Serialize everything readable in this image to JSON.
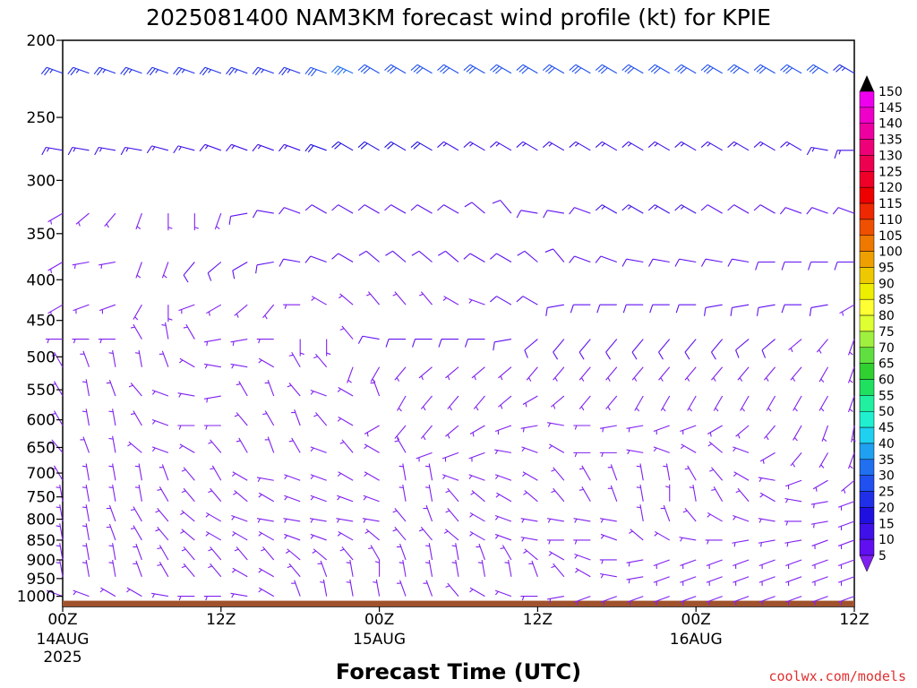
{
  "chart_data": {
    "type": "wind-barb-profile",
    "title": "2025081400 NAM3KM forecast wind profile (kt) for KPIE",
    "xlabel": "Forecast Time (UTC)",
    "ylabel": "",
    "y_ticks": [
      "200",
      "250",
      "300",
      "350",
      "400",
      "450",
      "500",
      "550",
      "600",
      "650",
      "700",
      "750",
      "800",
      "850",
      "900",
      "950",
      "1000"
    ],
    "y_range": [
      200,
      1030
    ],
    "y_scale": "log-pressure",
    "x_range_hours": [
      0,
      60
    ],
    "x_ticks": [
      {
        "hour": 0,
        "label": "00Z",
        "sub1": "14AUG",
        "sub2": "2025"
      },
      {
        "hour": 12,
        "label": "12Z",
        "sub1": "",
        "sub2": ""
      },
      {
        "hour": 24,
        "label": "00Z",
        "sub1": "15AUG",
        "sub2": ""
      },
      {
        "hour": 36,
        "label": "12Z",
        "sub1": "",
        "sub2": ""
      },
      {
        "hour": 48,
        "label": "00Z",
        "sub1": "16AUG",
        "sub2": ""
      },
      {
        "hour": 60,
        "label": "12Z",
        "sub1": "",
        "sub2": ""
      }
    ],
    "ground_color": "#a0522d",
    "colorbar": {
      "labels": [
        "150",
        "145",
        "140",
        "135",
        "130",
        "125",
        "120",
        "115",
        "110",
        "105",
        "100",
        "95",
        "90",
        "85",
        "80",
        "75",
        "70",
        "65",
        "60",
        "55",
        "50",
        "45",
        "40",
        "35",
        "30",
        "25",
        "20",
        "15",
        "10",
        "5"
      ],
      "colors": [
        "#ee00ee",
        "#ee00c8",
        "#ee00a0",
        "#ee0078",
        "#ee0050",
        "#ee0028",
        "#ee0000",
        "#ee2800",
        "#ee5000",
        "#ee7800",
        "#eea000",
        "#eec800",
        "#eeee00",
        "#ffff33",
        "#dfff33",
        "#a0f040",
        "#60e040",
        "#30d030",
        "#20e060",
        "#20f0a0",
        "#20f0d0",
        "#20d0f0",
        "#20a0f0",
        "#2070f0",
        "#2050f0",
        "#2030e8",
        "#2010e0",
        "#4010e8",
        "#6010f0",
        "#8020f0"
      ]
    },
    "barb_rows": [
      {
        "p": 220,
        "dirs": [
          290,
          290,
          290,
          290,
          290,
          290,
          290,
          290,
          290,
          290,
          290,
          295,
          300,
          300,
          300,
          300,
          300,
          300,
          300,
          300,
          300,
          300,
          300,
          300,
          300,
          300,
          300,
          300,
          300,
          300,
          300
        ],
        "speeds": [
          25,
          25,
          25,
          25,
          25,
          25,
          25,
          25,
          25,
          25,
          30,
          35,
          30,
          30,
          30,
          30,
          30,
          30,
          30,
          30,
          30,
          30,
          30,
          30,
          30,
          30,
          30,
          30,
          30,
          30,
          25
        ]
      },
      {
        "p": 275,
        "dirs": [
          280,
          280,
          280,
          280,
          285,
          285,
          290,
          290,
          290,
          290,
          290,
          300,
          300,
          300,
          300,
          300,
          300,
          300,
          300,
          300,
          300,
          300,
          300,
          300,
          300,
          300,
          300,
          300,
          300,
          280,
          270
        ],
        "speeds": [
          15,
          15,
          15,
          15,
          15,
          15,
          15,
          15,
          15,
          15,
          20,
          20,
          20,
          20,
          20,
          15,
          15,
          15,
          15,
          15,
          15,
          15,
          15,
          15,
          15,
          15,
          15,
          15,
          15,
          15,
          15
        ]
      },
      {
        "p": 330,
        "dirs": [
          240,
          230,
          220,
          200,
          180,
          180,
          200,
          260,
          280,
          290,
          300,
          300,
          300,
          300,
          300,
          300,
          310,
          320,
          280,
          280,
          290,
          300,
          300,
          300,
          300,
          300,
          300,
          300,
          290,
          290,
          290
        ],
        "speeds": [
          5,
          5,
          5,
          5,
          5,
          5,
          5,
          10,
          10,
          10,
          10,
          10,
          10,
          10,
          10,
          10,
          10,
          10,
          10,
          10,
          10,
          15,
          15,
          15,
          15,
          10,
          10,
          10,
          10,
          10,
          10
        ]
      },
      {
        "p": 380,
        "dirs": [
          240,
          260,
          260,
          200,
          200,
          220,
          230,
          240,
          260,
          280,
          290,
          300,
          310,
          310,
          310,
          310,
          300,
          300,
          310,
          320,
          290,
          290,
          280,
          280,
          280,
          280,
          280,
          270,
          270,
          270,
          270
        ],
        "speeds": [
          5,
          5,
          5,
          5,
          5,
          10,
          10,
          10,
          10,
          10,
          10,
          10,
          10,
          10,
          10,
          10,
          10,
          10,
          10,
          10,
          10,
          10,
          10,
          10,
          10,
          10,
          10,
          10,
          10,
          10,
          10
        ]
      },
      {
        "p": 430,
        "dirs": [
          240,
          250,
          250,
          210,
          180,
          250,
          240,
          230,
          220,
          270,
          300,
          310,
          320,
          320,
          320,
          300,
          290,
          300,
          300,
          260,
          270,
          270,
          270,
          270,
          270,
          260,
          260,
          260,
          270,
          260,
          240
        ],
        "speeds": [
          5,
          5,
          5,
          5,
          5,
          5,
          5,
          5,
          5,
          5,
          5,
          5,
          5,
          5,
          5,
          5,
          5,
          10,
          10,
          10,
          10,
          10,
          10,
          10,
          10,
          10,
          10,
          10,
          10,
          10,
          5
        ]
      },
      {
        "p": 475,
        "dirs": [
          270,
          270,
          270,
          330,
          350,
          330,
          260,
          260,
          270,
          180,
          180,
          320,
          280,
          270,
          270,
          270,
          270,
          260,
          230,
          220,
          220,
          220,
          220,
          220,
          220,
          220,
          230,
          230,
          230,
          220,
          200
        ],
        "speeds": [
          5,
          5,
          5,
          5,
          5,
          5,
          5,
          5,
          5,
          5,
          5,
          5,
          10,
          10,
          10,
          10,
          10,
          10,
          10,
          10,
          10,
          10,
          10,
          10,
          10,
          10,
          10,
          10,
          5,
          5,
          5
        ]
      },
      {
        "p": 515,
        "dirs": [
          330,
          340,
          350,
          350,
          340,
          300,
          280,
          280,
          300,
          330,
          320,
          200,
          210,
          220,
          230,
          230,
          230,
          230,
          220,
          220,
          220,
          220,
          220,
          220,
          220,
          220,
          220,
          220,
          220,
          210,
          200
        ],
        "speeds": [
          5,
          5,
          5,
          5,
          5,
          5,
          5,
          5,
          5,
          5,
          5,
          5,
          5,
          5,
          5,
          5,
          5,
          5,
          5,
          5,
          5,
          5,
          5,
          5,
          5,
          5,
          5,
          5,
          5,
          5,
          5
        ]
      },
      {
        "p": 560,
        "dirs": [
          330,
          350,
          340,
          320,
          290,
          280,
          260,
          330,
          340,
          320,
          290,
          300,
          340,
          210,
          220,
          220,
          220,
          230,
          240,
          230,
          220,
          220,
          210,
          210,
          210,
          210,
          210,
          210,
          210,
          210,
          200
        ],
        "speeds": [
          5,
          5,
          5,
          5,
          5,
          5,
          5,
          5,
          5,
          5,
          5,
          5,
          5,
          5,
          5,
          5,
          5,
          5,
          5,
          5,
          5,
          5,
          5,
          5,
          5,
          5,
          5,
          5,
          5,
          5,
          5
        ]
      },
      {
        "p": 610,
        "dirs": [
          330,
          350,
          350,
          330,
          290,
          270,
          270,
          320,
          330,
          340,
          320,
          300,
          240,
          220,
          220,
          230,
          240,
          250,
          260,
          280,
          270,
          260,
          260,
          250,
          250,
          240,
          230,
          220,
          210,
          200,
          190
        ],
        "speeds": [
          5,
          5,
          5,
          5,
          5,
          5,
          5,
          5,
          5,
          5,
          5,
          5,
          5,
          5,
          5,
          5,
          5,
          5,
          5,
          5,
          5,
          5,
          5,
          5,
          5,
          5,
          5,
          5,
          5,
          5,
          5
        ]
      },
      {
        "p": 660,
        "dirs": [
          320,
          340,
          350,
          310,
          290,
          300,
          320,
          330,
          340,
          330,
          290,
          320,
          300,
          330,
          250,
          250,
          250,
          280,
          290,
          300,
          270,
          270,
          280,
          290,
          300,
          310,
          290,
          240,
          220,
          210,
          200
        ],
        "speeds": [
          5,
          5,
          5,
          5,
          5,
          5,
          5,
          5,
          5,
          5,
          5,
          5,
          5,
          5,
          5,
          5,
          5,
          5,
          5,
          5,
          5,
          5,
          5,
          5,
          5,
          5,
          5,
          5,
          5,
          5,
          5
        ]
      },
      {
        "p": 715,
        "dirs": [
          330,
          350,
          350,
          350,
          340,
          320,
          330,
          300,
          280,
          290,
          290,
          300,
          300,
          350,
          350,
          290,
          290,
          290,
          300,
          320,
          330,
          340,
          350,
          350,
          330,
          320,
          300,
          280,
          250,
          240,
          230
        ],
        "speeds": [
          5,
          5,
          5,
          5,
          5,
          5,
          5,
          5,
          5,
          5,
          5,
          5,
          5,
          5,
          5,
          5,
          5,
          5,
          5,
          5,
          5,
          5,
          5,
          5,
          5,
          5,
          5,
          5,
          5,
          5,
          5
        ]
      },
      {
        "p": 760,
        "dirs": [
          350,
          350,
          350,
          350,
          330,
          320,
          320,
          310,
          300,
          290,
          290,
          290,
          290,
          350,
          350,
          320,
          310,
          300,
          310,
          320,
          330,
          340,
          350,
          360,
          350,
          330,
          320,
          300,
          280,
          260,
          250
        ],
        "speeds": [
          5,
          5,
          5,
          5,
          5,
          5,
          5,
          5,
          5,
          5,
          5,
          5,
          5,
          5,
          5,
          5,
          5,
          5,
          5,
          5,
          5,
          5,
          5,
          5,
          5,
          5,
          5,
          5,
          5,
          5,
          5
        ]
      },
      {
        "p": 805,
        "dirs": [
          350,
          350,
          340,
          330,
          320,
          310,
          300,
          290,
          280,
          280,
          280,
          280,
          280,
          320,
          340,
          320,
          300,
          290,
          280,
          280,
          280,
          280,
          350,
          340,
          320,
          300,
          290,
          280,
          270,
          260,
          250
        ],
        "speeds": [
          5,
          5,
          5,
          5,
          5,
          5,
          5,
          5,
          5,
          5,
          5,
          5,
          5,
          5,
          5,
          5,
          5,
          5,
          5,
          5,
          5,
          5,
          5,
          5,
          5,
          5,
          5,
          5,
          5,
          5,
          5
        ]
      },
      {
        "p": 850,
        "dirs": [
          350,
          350,
          340,
          330,
          320,
          310,
          300,
          300,
          300,
          290,
          290,
          300,
          310,
          320,
          320,
          310,
          300,
          290,
          280,
          270,
          270,
          290,
          310,
          300,
          280,
          270,
          260,
          260,
          260,
          250,
          250
        ],
        "speeds": [
          5,
          5,
          5,
          5,
          5,
          5,
          5,
          5,
          5,
          5,
          5,
          5,
          5,
          5,
          5,
          5,
          5,
          5,
          5,
          5,
          5,
          5,
          5,
          5,
          5,
          5,
          5,
          5,
          5,
          5,
          5
        ]
      },
      {
        "p": 900,
        "dirs": [
          350,
          350,
          350,
          340,
          330,
          320,
          320,
          320,
          320,
          310,
          310,
          320,
          330,
          340,
          350,
          350,
          340,
          330,
          310,
          300,
          290,
          270,
          260,
          250,
          250,
          250,
          250,
          250,
          250,
          250,
          250
        ],
        "speeds": [
          5,
          5,
          5,
          5,
          5,
          5,
          5,
          5,
          5,
          5,
          5,
          5,
          5,
          5,
          5,
          5,
          5,
          5,
          5,
          5,
          5,
          5,
          5,
          5,
          5,
          5,
          5,
          5,
          5,
          5,
          5
        ]
      },
      {
        "p": 945,
        "dirs": [
          350,
          350,
          350,
          340,
          330,
          320,
          320,
          300,
          300,
          320,
          340,
          350,
          360,
          350,
          350,
          350,
          350,
          350,
          340,
          320,
          300,
          280,
          260,
          250,
          250,
          250,
          250,
          250,
          250,
          250,
          250
        ],
        "speeds": [
          5,
          5,
          5,
          5,
          5,
          5,
          5,
          5,
          5,
          5,
          5,
          5,
          5,
          5,
          5,
          5,
          5,
          5,
          5,
          5,
          5,
          5,
          5,
          5,
          5,
          5,
          5,
          5,
          5,
          5,
          5
        ]
      },
      {
        "p": 1000,
        "dirs": [
          290,
          290,
          300,
          300,
          280,
          270,
          270,
          280,
          300,
          340,
          350,
          350,
          350,
          340,
          340,
          320,
          300,
          290,
          270,
          260,
          250,
          250,
          250,
          250,
          250,
          250,
          250,
          250,
          250,
          250,
          250
        ],
        "speeds": [
          5,
          5,
          5,
          5,
          5,
          5,
          5,
          5,
          5,
          5,
          5,
          5,
          5,
          5,
          5,
          5,
          5,
          5,
          5,
          5,
          5,
          5,
          5,
          5,
          5,
          5,
          5,
          5,
          5,
          5,
          5
        ]
      }
    ],
    "barb_time_step_hours": 2
  },
  "credit": "coolwx.com/models"
}
